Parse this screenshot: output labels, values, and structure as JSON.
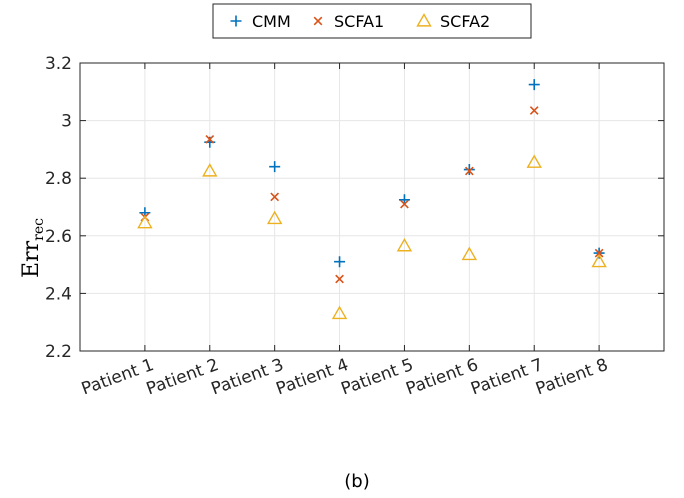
{
  "chart_data": {
    "type": "scatter",
    "categories": [
      "Patient 1",
      "Patient 2",
      "Patient 3",
      "Patient 4",
      "Patient 5",
      "Patient 6",
      "Patient 7",
      "Patient 8"
    ],
    "series": [
      {
        "name": "CMM",
        "marker": "plus",
        "color": "#0072BD",
        "values": [
          2.68,
          2.925,
          2.84,
          2.51,
          2.725,
          2.83,
          3.125,
          2.54
        ]
      },
      {
        "name": "SCFA1",
        "marker": "cross",
        "color": "#D95319",
        "values": [
          2.665,
          2.935,
          2.735,
          2.45,
          2.71,
          2.825,
          3.035,
          2.54
        ]
      },
      {
        "name": "SCFA2",
        "marker": "triangle",
        "color": "#EDB120",
        "values": [
          2.645,
          2.825,
          2.66,
          2.33,
          2.565,
          2.535,
          2.855,
          2.51
        ]
      }
    ],
    "ylabel": {
      "main": "Err",
      "sub": "rec"
    },
    "ylim": [
      2.2,
      3.2
    ],
    "yticks": [
      "2.2",
      "2.4",
      "2.6",
      "2.8",
      "3",
      "3.2"
    ],
    "grid": true,
    "legend_position": "top-center",
    "caption": "(b)"
  }
}
